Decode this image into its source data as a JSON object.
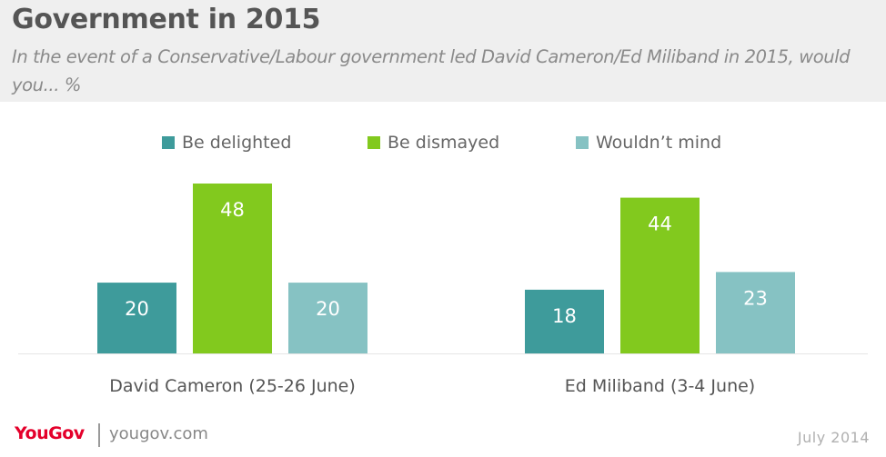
{
  "header": {
    "title": "Government in 2015",
    "subtitle": "In the event of a Conservative/Labour government led David Cameron/Ed Miliband in 2015, would you... %"
  },
  "legend": [
    {
      "label": "Be delighted",
      "color": "#3e9b9b"
    },
    {
      "label": "Be dismayed",
      "color": "#82c91e"
    },
    {
      "label": "Wouldn’t mind",
      "color": "#86c2c3"
    }
  ],
  "chart_data": {
    "type": "bar",
    "categories": [
      "David Cameron (25-26 June)",
      "Ed Miliband (3-4 June)"
    ],
    "series": [
      {
        "name": "Be delighted",
        "values": [
          20,
          18
        ],
        "color": "#3e9b9b"
      },
      {
        "name": "Be dismayed",
        "values": [
          48,
          44
        ],
        "color": "#82c91e"
      },
      {
        "name": "Wouldn’t mind",
        "values": [
          20,
          23
        ],
        "color": "#86c2c3"
      }
    ],
    "title": "Government in 2015",
    "ylim": [
      0,
      48
    ],
    "grid": false,
    "legend_position": "top",
    "data_labels": true
  },
  "footer": {
    "logo": "YouGov",
    "site": "yougov.com",
    "date": "July 2014"
  }
}
